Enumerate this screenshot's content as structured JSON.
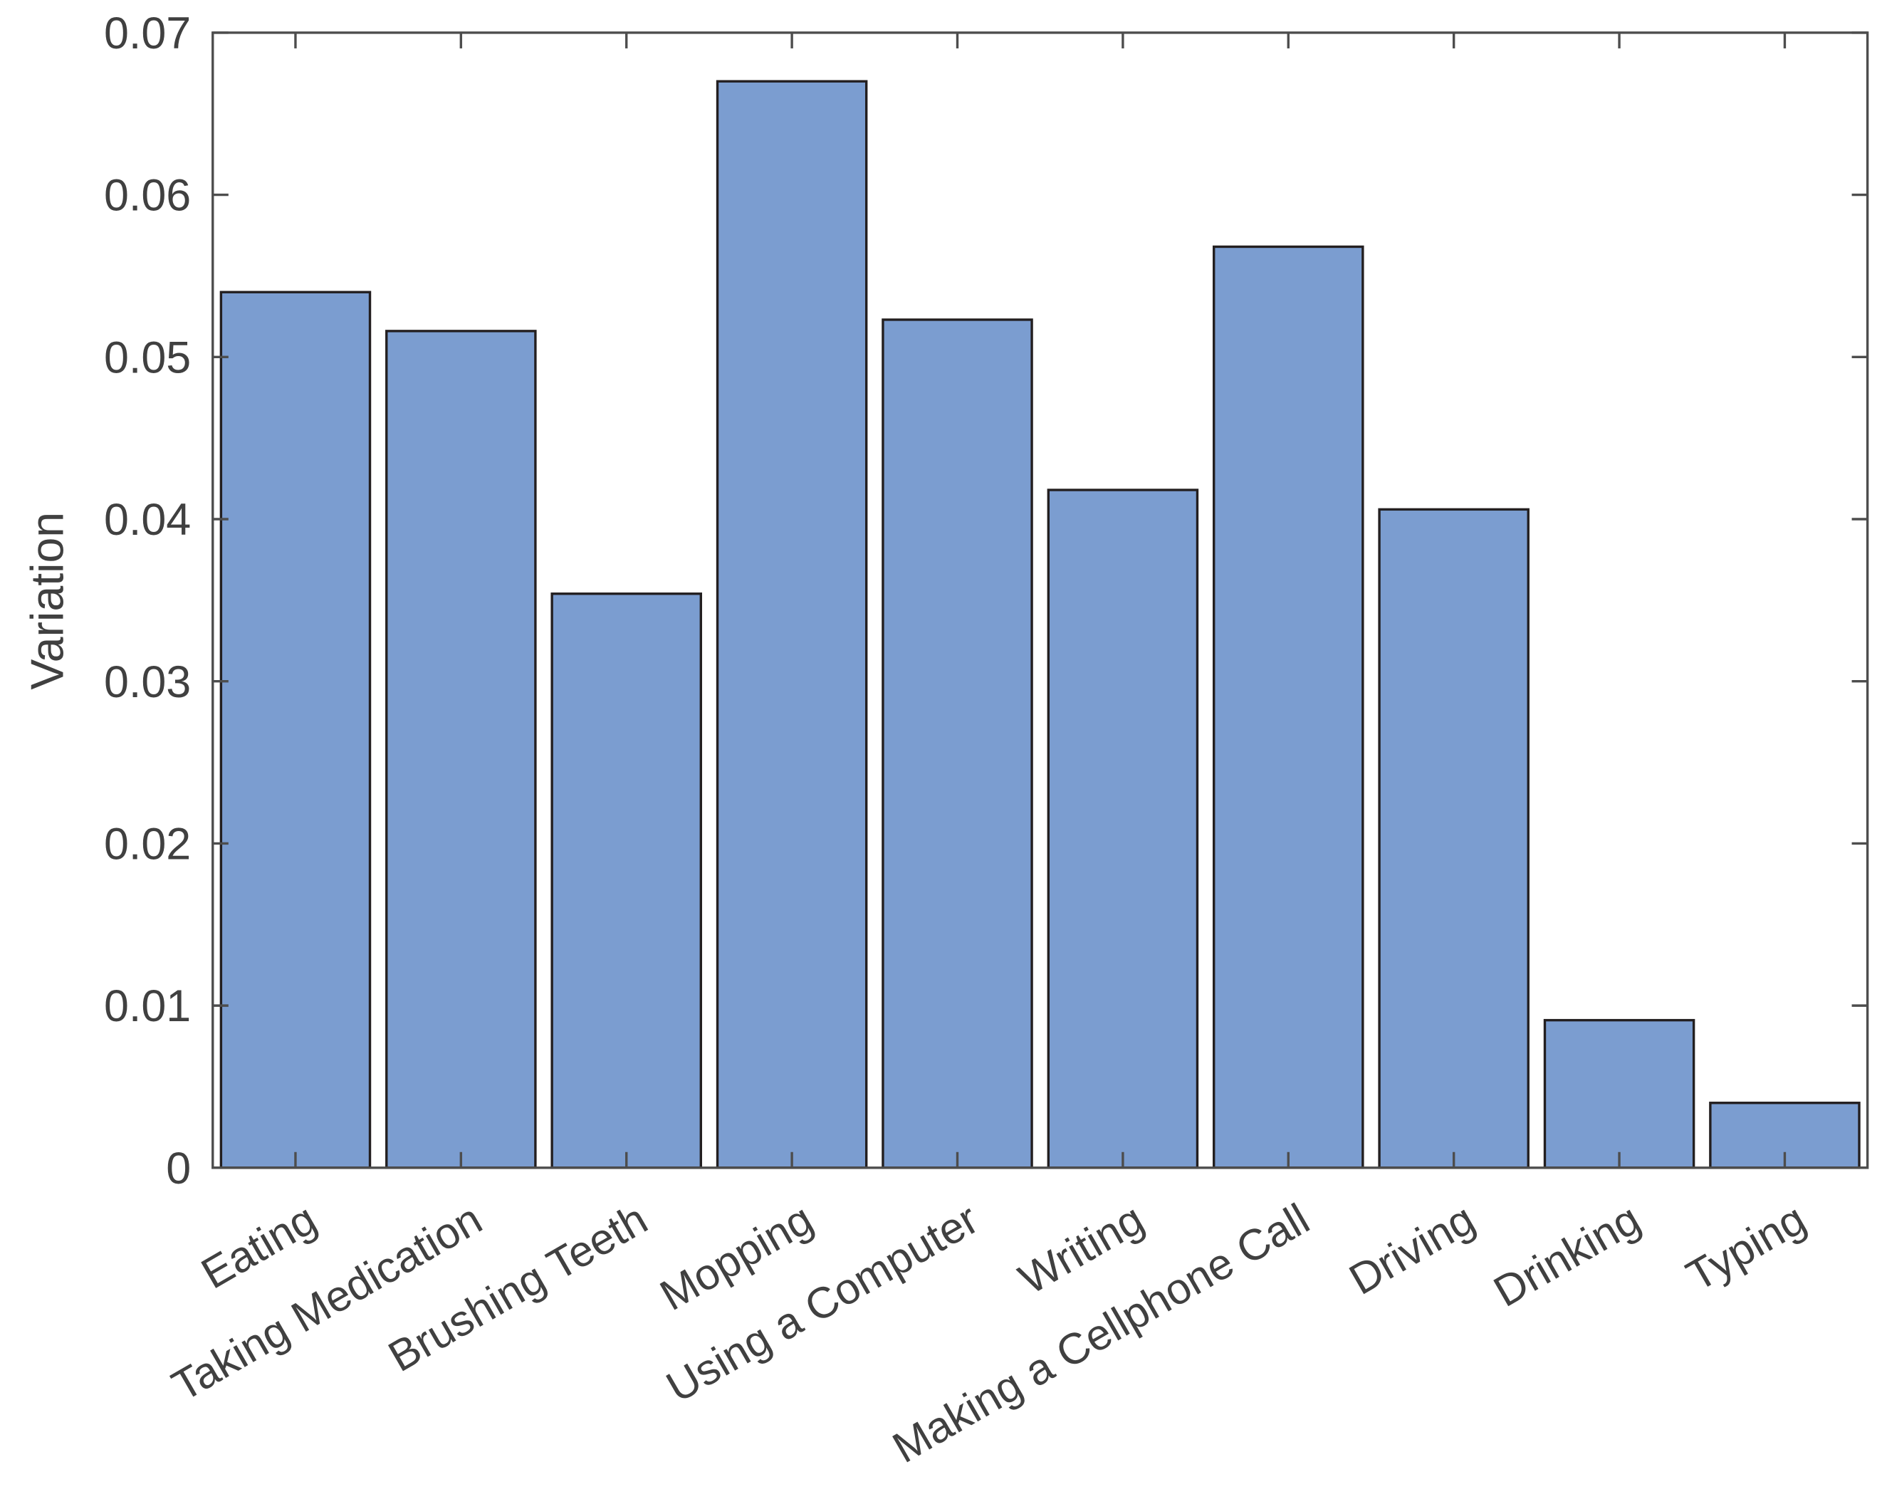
{
  "chart_data": {
    "type": "bar",
    "title": "",
    "xlabel": "",
    "ylabel": "Variation",
    "categories": [
      "Eating",
      "Taking Medication",
      "Brushing Teeth",
      "Mopping",
      "Using a Computer",
      "Writing",
      "Making a Cellphone Call",
      "Driving",
      "Drinking",
      "Typing"
    ],
    "values": [
      0.054,
      0.0516,
      0.0354,
      0.067,
      0.0523,
      0.0418,
      0.0568,
      0.0406,
      0.0091,
      0.004
    ],
    "ylim": [
      0,
      0.07
    ],
    "yticks": [
      "0",
      "0.01",
      "0.02",
      "0.03",
      "0.04",
      "0.05",
      "0.06",
      "0.07"
    ],
    "grid": false,
    "colors": {
      "bar_fill": "#7b9dd0",
      "bar_edge": "#231f20",
      "axis": "#4d4d4d"
    }
  }
}
